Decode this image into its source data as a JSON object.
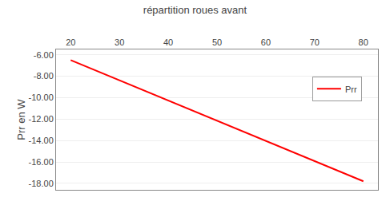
{
  "chart_data": {
    "type": "line",
    "title": "répartition roues avant",
    "ylabel": "Prr en W",
    "x": [
      20,
      80
    ],
    "series": [
      {
        "name": "Prr",
        "color": "#FF0000",
        "values": [
          -6.5,
          -17.8
        ]
      }
    ],
    "xlim": [
      17,
      83
    ],
    "xticks": [
      20,
      30,
      40,
      50,
      60,
      70,
      80
    ],
    "ylim": [
      -18.6,
      -5.5
    ],
    "yticks": [
      {
        "value": -6.0,
        "label": "-6.00"
      },
      {
        "value": -8.0,
        "label": "-8.00"
      },
      {
        "value": -10.0,
        "label": "-10.00"
      },
      {
        "value": -12.0,
        "label": "-12.00"
      },
      {
        "value": -14.0,
        "label": "-14.00"
      },
      {
        "value": -16.0,
        "label": "-16.00"
      },
      {
        "value": -18.0,
        "label": "-18.00"
      }
    ],
    "grid": "y",
    "legend": "right"
  }
}
